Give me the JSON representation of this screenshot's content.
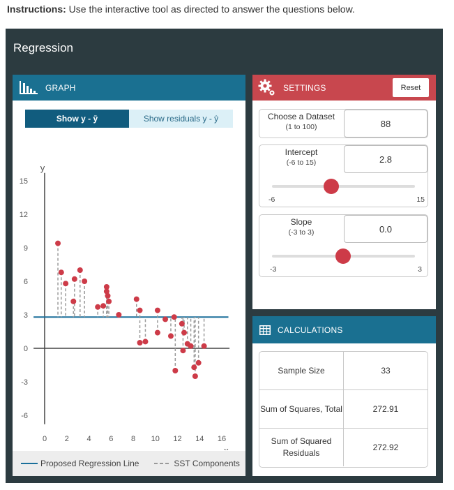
{
  "instructions": {
    "bold": "Instructions:",
    "text": " Use the interactive tool as directed to answer the questions below."
  },
  "app": {
    "title": "Regression"
  },
  "graph": {
    "header": "GRAPH",
    "toggle_on": "Show y - ȳ",
    "toggle_off": "Show residuals y - ŷ",
    "ylabel": "y",
    "xlabel": "x",
    "legend_line": "Proposed Regression Line",
    "legend_sst": "SST Components"
  },
  "settings": {
    "header": "SETTINGS",
    "reset": "Reset",
    "dataset": {
      "label": "Choose a Dataset",
      "range": "(1 to 100)",
      "value": "88"
    },
    "intercept": {
      "label": "Intercept",
      "range": "(-6 to 15)",
      "value": "2.8",
      "min": "-6",
      "max": "15"
    },
    "slope": {
      "label": "Slope",
      "range": "(-3 to 3)",
      "value": "0.0",
      "min": "-3",
      "max": "3"
    }
  },
  "calculations": {
    "header": "CALCULATIONS",
    "rows": [
      {
        "label": "Sample Size",
        "value": "33"
      },
      {
        "label": "Sum of Squares, Total",
        "value": "272.91"
      },
      {
        "label": "Sum of Squared Residuals",
        "value": "272.92"
      }
    ]
  },
  "colors": {
    "line": "#1a6f9a",
    "point": "#cd3b48",
    "header_blue": "#1a7091",
    "header_red": "#c8474e",
    "frame": "#2c3b40"
  },
  "chart_data": {
    "type": "scatter",
    "xlabel": "x",
    "ylabel": "y",
    "xlim": [
      -1,
      16.7
    ],
    "ylim": [
      -6.8,
      15.7
    ],
    "xticks": [
      0,
      2,
      4,
      6,
      8,
      10,
      12,
      14,
      16
    ],
    "yticks": [
      -6,
      -3,
      0,
      3,
      6,
      9,
      12,
      15
    ],
    "line": {
      "intercept": 2.8,
      "slope": 0.0
    },
    "points": [
      [
        1.2,
        9.4
      ],
      [
        1.5,
        6.8
      ],
      [
        1.9,
        5.8
      ],
      [
        2.7,
        6.2
      ],
      [
        3.2,
        7.0
      ],
      [
        3.6,
        6.0
      ],
      [
        2.6,
        4.2
      ],
      [
        4.8,
        3.7
      ],
      [
        5.3,
        3.8
      ],
      [
        5.6,
        5.5
      ],
      [
        5.6,
        5.1
      ],
      [
        5.7,
        4.7
      ],
      [
        5.8,
        4.2
      ],
      [
        6.7,
        3.0
      ],
      [
        8.3,
        4.4
      ],
      [
        8.6,
        3.4
      ],
      [
        8.6,
        0.5
      ],
      [
        9.1,
        0.6
      ],
      [
        10.2,
        3.4
      ],
      [
        10.2,
        1.4
      ],
      [
        10.9,
        2.6
      ],
      [
        11.4,
        1.1
      ],
      [
        11.7,
        2.8
      ],
      [
        11.8,
        -2.0
      ],
      [
        12.4,
        2.2
      ],
      [
        12.6,
        1.4
      ],
      [
        12.9,
        0.4
      ],
      [
        13.2,
        0.2
      ],
      [
        12.5,
        -0.2
      ],
      [
        13.5,
        -1.7
      ],
      [
        13.6,
        -2.5
      ],
      [
        13.9,
        -1.3
      ],
      [
        14.4,
        0.2
      ]
    ]
  }
}
